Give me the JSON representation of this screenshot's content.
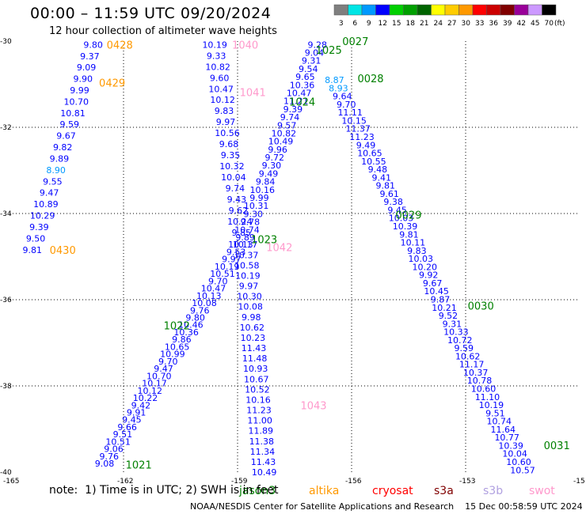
{
  "header": {
    "title": "00:00 – 11:59 UTC 09/20/2024",
    "subtitle": "12 hour collection of altimeter wave heights"
  },
  "colorbar": {
    "levels": [
      "3",
      "6",
      "9",
      "12",
      "15",
      "18",
      "21",
      "24",
      "27",
      "30",
      "33",
      "36",
      "39",
      "42",
      "45",
      "70"
    ],
    "unit": "(ft)",
    "colors": [
      "#7f7f7f",
      "#00e5e5",
      "#0099ff",
      "#0000ff",
      "#00d000",
      "#00a000",
      "#006400",
      "#ffff00",
      "#ffcc00",
      "#ff9900",
      "#ff0000",
      "#cc0000",
      "#800000",
      "#990099",
      "#cc99ff",
      "#000000"
    ]
  },
  "satellites": [
    {
      "name": "jason3",
      "color": "#008000"
    },
    {
      "name": "altika",
      "color": "#ff9900"
    },
    {
      "name": "cryosat",
      "color": "#ff0000"
    },
    {
      "name": "s3a",
      "color": "#800000"
    },
    {
      "name": "s3b",
      "color": "#b0a0e0"
    },
    {
      "name": "swot",
      "color": "#ff99cc"
    }
  ],
  "footer": {
    "note": "note:  1) Time is in UTC; 2) SWH is in feet",
    "credit": "NOAA/NESDIS Center for Satellite Applications and Research    15 Dec 00:58:59 UTC 2024"
  },
  "chart_data": {
    "type": "scatter",
    "xlim": [
      -165,
      -150
    ],
    "ylim": [
      -40,
      -30
    ],
    "x_ticks": [
      "-165",
      "-162",
      "-159",
      "-156",
      "-153",
      "-15"
    ],
    "y_ticks": [
      "-30",
      "-32",
      "-34",
      "-36",
      "-38",
      "-40"
    ],
    "grid": true,
    "tracks": [
      {
        "satellite": "altika",
        "color": "#ff9900",
        "start": [
          -162.8,
          -30.08
        ],
        "end": [
          -164.4,
          -34.84
        ],
        "values": [
          "9.80",
          "9.37",
          "9.09",
          "9.90",
          "9.99",
          "10.70",
          "10.81",
          "9.59",
          "9.67",
          "9.82",
          "9.89",
          "8.90",
          "9.55",
          "9.47",
          "10.89",
          "10.29",
          "9.39",
          "9.50",
          "9.81"
        ],
        "passes": [
          {
            "label": "0428",
            "lon": -162.1,
            "lat": -30.08
          },
          {
            "label": "0429",
            "lon": -162.3,
            "lat": -30.96
          },
          {
            "label": "0430",
            "lon": -163.6,
            "lat": -34.84
          }
        ]
      },
      {
        "satellite": "swot",
        "color": "#ff99cc",
        "start": [
          -159.6,
          -30.08
        ],
        "end": [
          -158.9,
          -34.44
        ],
        "values": [
          "10.19",
          "9.33",
          "10.82",
          "9.60",
          "10.47",
          "10.12",
          "9.83",
          "9.97",
          "10.56",
          "9.68",
          "9.35",
          "10.32",
          "10.04",
          "9.74",
          "9.43",
          "9.62",
          "10.24",
          "9.85"
        ],
        "passes": [
          {
            "label": "1040",
            "lon": -158.8,
            "lat": -30.08
          },
          {
            "label": "1041",
            "lon": -158.6,
            "lat": -31.18
          }
        ]
      },
      {
        "satellite": "swot",
        "color": "#ff99cc",
        "start": [
          -158.8,
          -34.72
        ],
        "end": [
          -158.3,
          -40.0
        ],
        "values": [
          "10.17",
          "10.37",
          "10.58",
          "10.19",
          "9.97",
          "10.30",
          "10.08",
          "9.98",
          "10.62",
          "10.23",
          "11.43",
          "11.48",
          "10.93",
          "10.67",
          "10.52",
          "10.16",
          "11.23",
          "11.00",
          "11.89",
          "11.38",
          "11.34",
          "11.43",
          "10.49"
        ],
        "passes": [
          {
            "label": "1042",
            "lon": -157.9,
            "lat": -34.78
          },
          {
            "label": "1043",
            "lon": -157.0,
            "lat": -38.45
          }
        ]
      },
      {
        "satellite": "jason3",
        "color": "#008000",
        "start": [
          -156.9,
          -30.08
        ],
        "end": [
          -158.75,
          -34.38
        ],
        "values": [
          "9.28",
          "9.04",
          "9.31",
          "9.54",
          "9.65",
          "10.36",
          "10.47",
          "11.21",
          "9.39",
          "9.74",
          "9.57",
          "10.82",
          "10.49",
          "9.96",
          "9.72",
          "9.30",
          "9.49",
          "9.84",
          "10.16",
          "9.99",
          "10.31",
          "9.30",
          "9.78",
          "10.74"
        ],
        "passes": [
          {
            "label": "0027",
            "lon": -155.9,
            "lat": -30.0
          },
          {
            "label": "1025",
            "lon": -156.6,
            "lat": -30.2
          },
          {
            "label": "1024",
            "lon": -157.3,
            "lat": -31.4
          }
        ]
      },
      {
        "satellite": "jason3",
        "color": "#008000",
        "start": [
          -158.8,
          -34.55
        ],
        "end": [
          -162.5,
          -39.8
        ],
        "values": [
          "9.89",
          "10.13",
          "9.53",
          "9.97",
          "10.19",
          "10.51",
          "9.70",
          "10.47",
          "10.13",
          "10.08",
          "9.76",
          "9.80",
          "10.46",
          "10.36",
          "9.86",
          "10.65",
          "10.99",
          "9.70",
          "9.47",
          "10.70",
          "10.17",
          "10.12",
          "10.22",
          "9.42",
          "9.91",
          "9.45",
          "9.66",
          "9.51",
          "10.51",
          "9.06",
          "9.76",
          "9.08"
        ],
        "passes": [
          {
            "label": "1023",
            "lon": -158.3,
            "lat": -34.6
          },
          {
            "label": "1022",
            "lon": -160.6,
            "lat": -36.6
          },
          {
            "label": "1021",
            "lon": -161.6,
            "lat": -39.83
          }
        ]
      },
      {
        "satellite": "jason3",
        "color": "#008000",
        "start": [
          -156.45,
          -30.9
        ],
        "end": [
          -151.5,
          -39.95
        ],
        "values": [
          "8.87",
          "8.93",
          "9.64",
          "9.70",
          "11.11",
          "10.15",
          "11.37",
          "11.23",
          "9.49",
          "10.65",
          "10.55",
          "9.48",
          "9.41",
          "9.81",
          "9.61",
          "9.38",
          "9.45",
          "10.03",
          "10.39",
          "9.81",
          "10.11",
          "9.83",
          "10.03",
          "10.20",
          "9.92",
          "9.67",
          "10.45",
          "9.87",
          "10.21",
          "9.52",
          "9.31",
          "10.33",
          "10.72",
          "9.59",
          "10.62",
          "11.17",
          "10.37",
          "10.78",
          "10.60",
          "11.10",
          "10.19",
          "9.51",
          "10.74",
          "11.64",
          "10.77",
          "10.39",
          "10.04",
          "10.60",
          "10.57"
        ],
        "passes": [
          {
            "label": "0028",
            "lon": -155.5,
            "lat": -30.86
          },
          {
            "label": "0029",
            "lon": -154.5,
            "lat": -34.03
          },
          {
            "label": "0030",
            "lon": -152.6,
            "lat": -36.14
          },
          {
            "label": "0031",
            "lon": -150.6,
            "lat": -39.38
          }
        ]
      }
    ]
  }
}
